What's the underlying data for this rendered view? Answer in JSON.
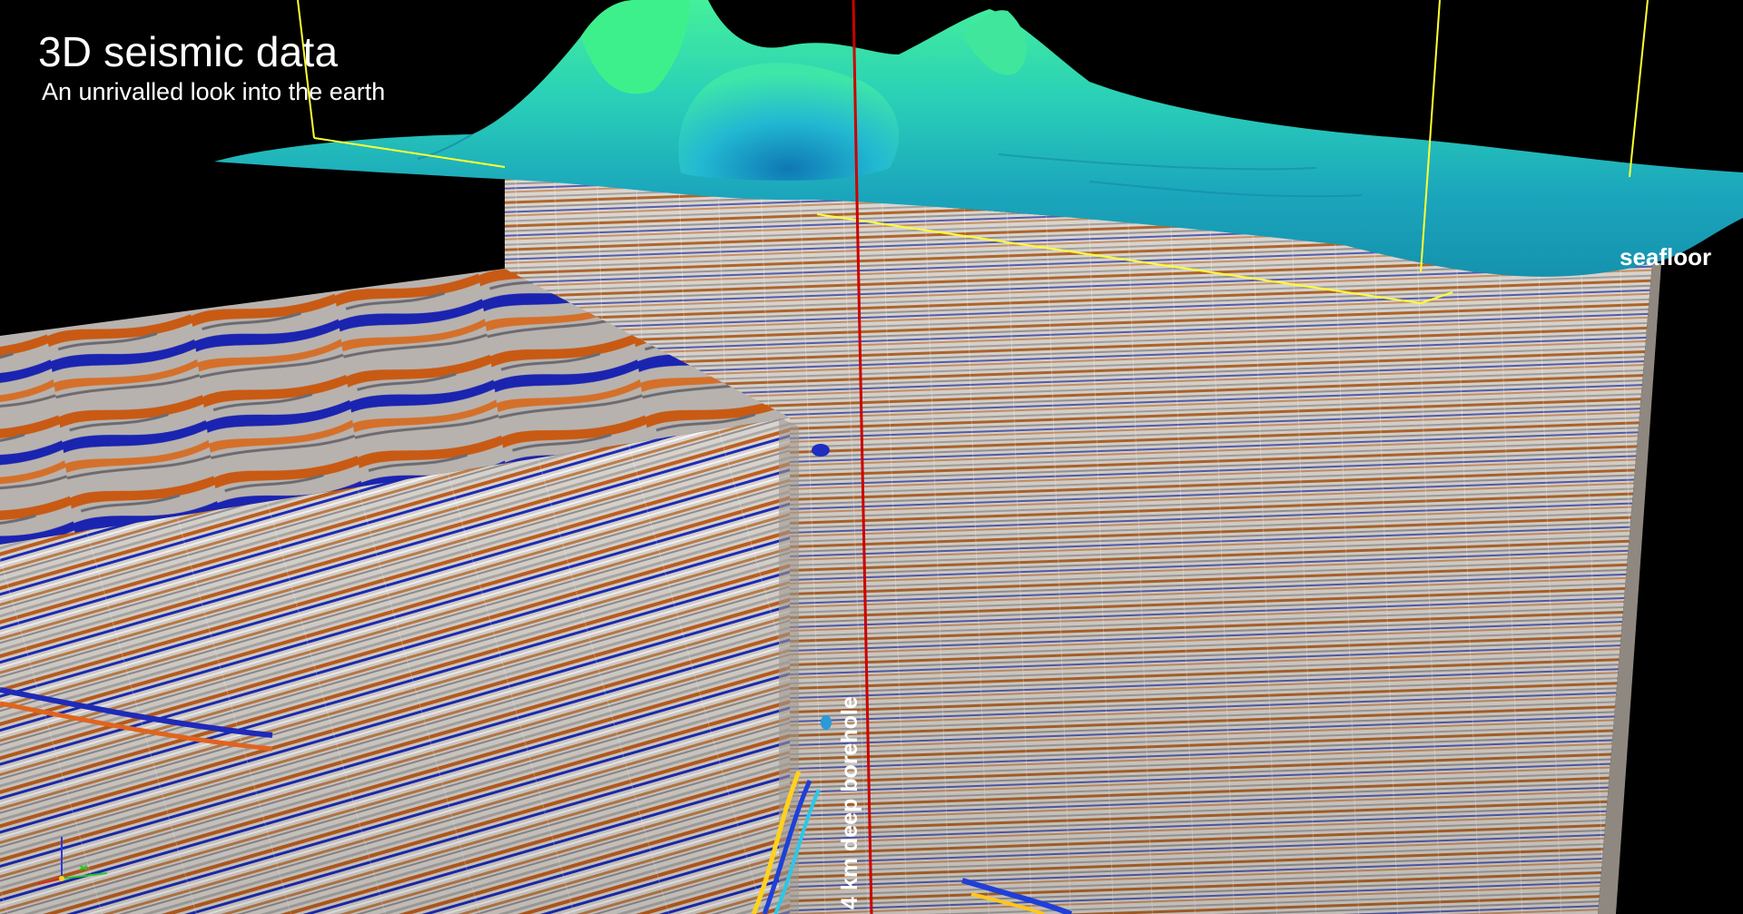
{
  "title": "3D seismic data",
  "subtitle": "An unrivalled look into the earth",
  "labels": {
    "seafloor": "seafloor",
    "borehole": "4 km deep borehole"
  },
  "colors": {
    "background": "#000000",
    "seafloor_low": "#1a8fb0",
    "seafloor_high": "#3ff0a0",
    "survey_outline": "#ffff33",
    "borehole": "#cc0000",
    "reflector_orange": "#c8641e",
    "reflector_blue": "#1e28b4",
    "seismic_base": "#d8d2cc"
  },
  "icons": {
    "axis_triad": "xyz-axis-triad-icon"
  }
}
